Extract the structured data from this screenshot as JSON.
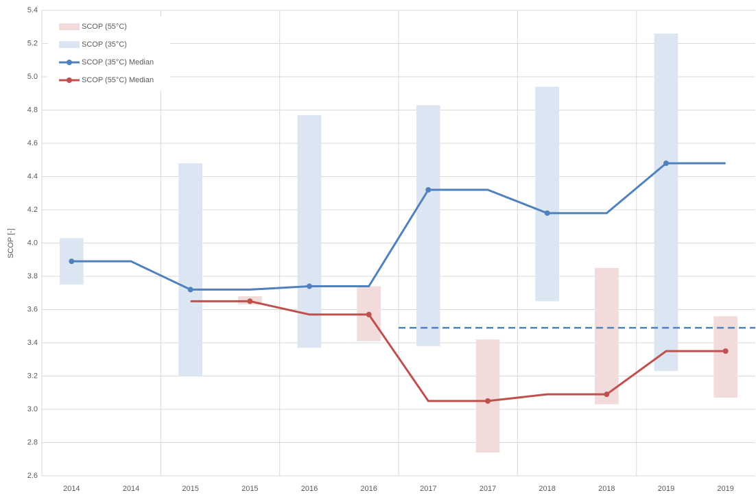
{
  "chart_data": {
    "type": "range-line",
    "y_label": "SCOP [-]",
    "categories": [
      "2014",
      "2014",
      "2015",
      "2015",
      "2016",
      "2016",
      "2017",
      "2017",
      "2018",
      "2018",
      "2019",
      "2019"
    ],
    "ylim": [
      2.6,
      5.4
    ],
    "yticks": [
      2.6,
      2.8,
      {
        "value": 3,
        "label": "3.0"
      },
      3.2,
      3.4,
      3.6,
      3.8,
      {
        "value": 4,
        "label": "4.0"
      },
      4.2,
      4.4,
      4.6,
      4.8,
      {
        "value": 5,
        "label": "5.0"
      },
      5.2,
      5.4
    ],
    "grid": true,
    "legend": "top-left",
    "ranges": [
      {
        "name": "SCOP (55°C)",
        "color": "#f2dcdb",
        "low": [
          null,
          null,
          null,
          3.63,
          null,
          3.41,
          null,
          2.74,
          null,
          3.03,
          null,
          3.07
        ],
        "high": [
          null,
          null,
          null,
          3.68,
          null,
          3.74,
          null,
          3.42,
          null,
          3.85,
          null,
          3.56
        ]
      },
      {
        "name": "SCOP (35°C)",
        "color": "#dce6f2",
        "low": [
          3.75,
          null,
          3.2,
          null,
          3.37,
          null,
          3.38,
          null,
          3.65,
          null,
          3.23,
          null
        ],
        "high": [
          4.03,
          null,
          4.48,
          null,
          4.77,
          null,
          4.83,
          null,
          4.94,
          null,
          5.26,
          null
        ]
      }
    ],
    "series": [
      {
        "name": "SCOP (35°C) Median",
        "color": "#4f81bd",
        "range": 1,
        "values": [
          3.89,
          3.89,
          3.72,
          3.72,
          3.74,
          3.74,
          4.32,
          4.32,
          4.18,
          4.18,
          4.48,
          4.48
        ]
      },
      {
        "name": "SCOP (55°C) Median",
        "color": "#c0504d",
        "range": 0,
        "values": [
          null,
          null,
          3.65,
          3.65,
          3.57,
          3.57,
          3.05,
          3.05,
          3.09,
          3.09,
          3.35,
          3.35
        ]
      }
    ],
    "reference_line": {
      "value": 3.49,
      "color": "#4f81bd",
      "dashed": true
    }
  }
}
